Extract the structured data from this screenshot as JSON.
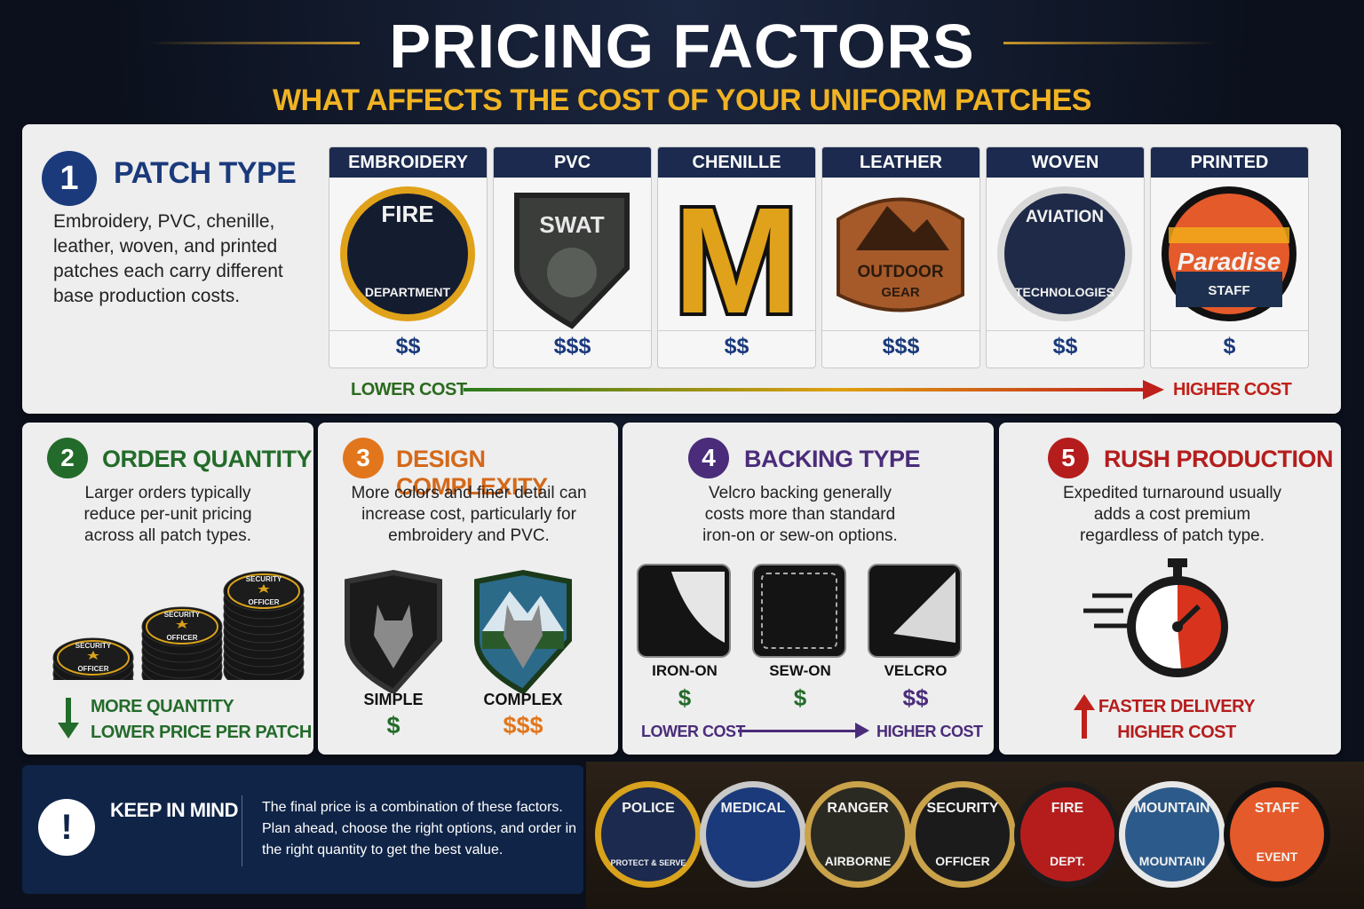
{
  "header": {
    "title": "PRICING FACTORS",
    "subtitle": "WHAT AFFECTS THE COST OF YOUR UNIFORM PATCHES"
  },
  "patch_type": {
    "number": "1",
    "title": "PATCH TYPE",
    "description": "Embroidery, PVC, chenille, leather, woven, and printed patches each carry different base production costs.",
    "types": [
      {
        "name": "EMBROIDERY",
        "price": "$$",
        "art": [
          "FIRE",
          "DEPARTMENT"
        ]
      },
      {
        "name": "PVC",
        "price": "$$$",
        "art": [
          "SWAT"
        ]
      },
      {
        "name": "CHENILLE",
        "price": "$$",
        "art": [
          "M"
        ]
      },
      {
        "name": "LEATHER",
        "price": "$$$",
        "art": [
          "OUTDOOR",
          "GEAR"
        ]
      },
      {
        "name": "WOVEN",
        "price": "$$",
        "art": [
          "AVIATION",
          "TECHNOLOGIES"
        ]
      },
      {
        "name": "PRINTED",
        "price": "$",
        "art": [
          "Paradise",
          "STAFF"
        ]
      }
    ],
    "scale": {
      "low": "LOWER COST",
      "high": "HIGHER COST"
    }
  },
  "order_quantity": {
    "number": "2",
    "title": "ORDER QUANTITY",
    "description": "Larger orders typically reduce per-unit pricing across all patch types.",
    "art": [
      "SECURITY",
      "OFFICER"
    ],
    "note": [
      "MORE QUANTITY",
      "LOWER PRICE PER PATCH"
    ]
  },
  "design_complexity": {
    "number": "3",
    "title": "DESIGN COMPLEXITY",
    "description": "More colors and finer detail can increase cost, particularly for embroidery and PVC.",
    "options": [
      {
        "name": "SIMPLE",
        "price": "$"
      },
      {
        "name": "COMPLEX",
        "price": "$$$"
      }
    ]
  },
  "backing_type": {
    "number": "4",
    "title": "BACKING TYPE",
    "description": "Velcro backing generally costs more than standard iron-on or sew-on options.",
    "options": [
      {
        "name": "IRON-ON",
        "price": "$"
      },
      {
        "name": "SEW-ON",
        "price": "$"
      },
      {
        "name": "VELCRO",
        "price": "$$"
      }
    ],
    "scale": {
      "low": "LOWER COST",
      "high": "HIGHER COST"
    }
  },
  "rush_production": {
    "number": "5",
    "title": "RUSH PRODUCTION",
    "description": "Expedited turnaround usually adds a cost premium regardless of patch type.",
    "note": [
      "FASTER DELIVERY",
      "HIGHER COST"
    ]
  },
  "keep_in_mind": {
    "icon": "!",
    "title": "KEEP IN MIND",
    "text": "The final price is a combination of these factors. Plan ahead, choose the right options, and order in the right quantity to get the best value."
  },
  "showcase": [
    [
      "POLICE",
      "PROTECT & SERVE"
    ],
    [
      "MEDICAL"
    ],
    [
      "RANGER",
      "AIRBORNE"
    ],
    [
      "SECURITY",
      "OFFICER"
    ],
    [
      "FIRE",
      "DEPT."
    ],
    [
      "MOUNTAIN",
      "MOUNTAIN"
    ],
    [
      "STAFF",
      "EVENT"
    ]
  ]
}
